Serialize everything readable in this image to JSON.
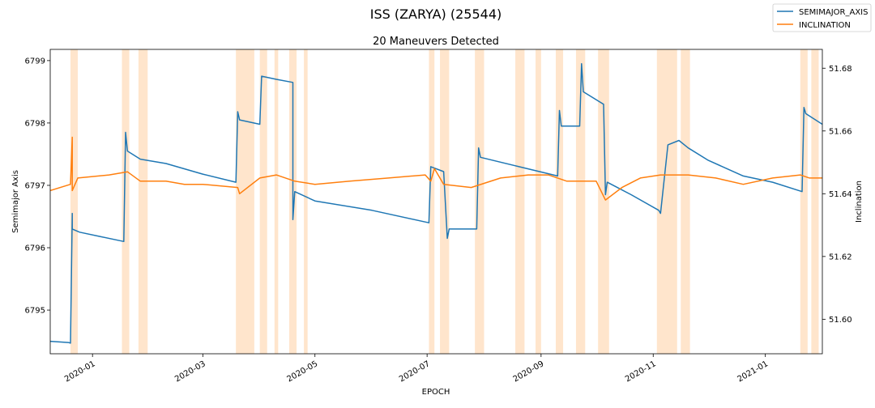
{
  "chart_data": {
    "type": "line",
    "suptitle": "ISS (ZARYA) (25544)",
    "title": "20 Maneuvers Detected",
    "xlabel": "EPOCH",
    "ylabel_left": "Semimajor Axis",
    "ylabel_right": "Inclination",
    "x_range": [
      "2019-12-09",
      "2021-02-01"
    ],
    "ylim_left": [
      6794.3,
      6799.18
    ],
    "ylim_right": [
      51.589,
      51.686
    ],
    "x_ticks": [
      {
        "date": "2020-01-01",
        "label": "2020-01"
      },
      {
        "date": "2020-03-01",
        "label": "2020-03"
      },
      {
        "date": "2020-05-01",
        "label": "2020-05"
      },
      {
        "date": "2020-07-01",
        "label": "2020-07"
      },
      {
        "date": "2020-09-01",
        "label": "2020-09"
      },
      {
        "date": "2020-11-01",
        "label": "2020-11"
      },
      {
        "date": "2021-01-01",
        "label": "2021-01"
      }
    ],
    "y_ticks_left": [
      6795,
      6796,
      6797,
      6798,
      6799
    ],
    "y_ticks_right": [
      "51.60",
      "51.62",
      "51.64",
      "51.66",
      "51.68"
    ],
    "legend_position": "top-right",
    "colors": {
      "semimajor": "#1f77b4",
      "inclination": "#ff7f0e",
      "maneuver": "#ffe5cc"
    },
    "maneuver_windows": [
      [
        "2019-12-20",
        "2019-12-24"
      ],
      [
        "2020-01-17",
        "2020-01-21"
      ],
      [
        "2020-01-26",
        "2020-01-31"
      ],
      [
        "2020-03-19",
        "2020-03-29"
      ],
      [
        "2020-04-01",
        "2020-04-05"
      ],
      [
        "2020-04-09",
        "2020-04-11"
      ],
      [
        "2020-04-17",
        "2020-04-21"
      ],
      [
        "2020-04-25",
        "2020-04-27"
      ],
      [
        "2020-07-02",
        "2020-07-05"
      ],
      [
        "2020-07-08",
        "2020-07-13"
      ],
      [
        "2020-07-27",
        "2020-08-01"
      ],
      [
        "2020-08-18",
        "2020-08-23"
      ],
      [
        "2020-08-29",
        "2020-09-01"
      ],
      [
        "2020-09-09",
        "2020-09-13"
      ],
      [
        "2020-09-20",
        "2020-09-25"
      ],
      [
        "2020-10-02",
        "2020-10-08"
      ],
      [
        "2020-11-03",
        "2020-11-14"
      ],
      [
        "2020-11-16",
        "2020-11-21"
      ],
      [
        "2021-01-20",
        "2021-01-24"
      ],
      [
        "2021-01-26",
        "2021-01-30"
      ]
    ],
    "series": [
      {
        "name": "SEMIMAJOR_AXIS",
        "axis": "left",
        "points": [
          [
            "2019-12-09",
            6794.5
          ],
          [
            "2019-12-19",
            6794.48
          ],
          [
            "2019-12-20",
            6794.47
          ],
          [
            "2019-12-21",
            6796.55
          ],
          [
            "2019-12-21",
            6796.3
          ],
          [
            "2019-12-25",
            6796.25
          ],
          [
            "2020-01-05",
            6796.18
          ],
          [
            "2020-01-18",
            6796.1
          ],
          [
            "2020-01-19",
            6797.85
          ],
          [
            "2020-01-20",
            6797.55
          ],
          [
            "2020-01-27",
            6797.42
          ],
          [
            "2020-02-10",
            6797.35
          ],
          [
            "2020-03-01",
            6797.18
          ],
          [
            "2020-03-19",
            6797.05
          ],
          [
            "2020-03-20",
            6798.18
          ],
          [
            "2020-03-21",
            6798.05
          ],
          [
            "2020-04-01",
            6797.98
          ],
          [
            "2020-04-02",
            6798.75
          ],
          [
            "2020-04-10",
            6798.7
          ],
          [
            "2020-04-19",
            6798.65
          ],
          [
            "2020-04-19",
            6796.45
          ],
          [
            "2020-04-20",
            6796.9
          ],
          [
            "2020-05-01",
            6796.75
          ],
          [
            "2020-06-01",
            6796.6
          ],
          [
            "2020-07-02",
            6796.4
          ],
          [
            "2020-07-03",
            6797.3
          ],
          [
            "2020-07-10",
            6797.22
          ],
          [
            "2020-07-12",
            6796.15
          ],
          [
            "2020-07-13",
            6796.3
          ],
          [
            "2020-07-28",
            6796.3
          ],
          [
            "2020-07-29",
            6797.6
          ],
          [
            "2020-07-30",
            6797.45
          ],
          [
            "2020-08-20",
            6797.3
          ],
          [
            "2020-09-10",
            6797.15
          ],
          [
            "2020-09-11",
            6798.2
          ],
          [
            "2020-09-12",
            6797.95
          ],
          [
            "2020-09-22",
            6797.95
          ],
          [
            "2020-09-23",
            6798.95
          ],
          [
            "2020-09-24",
            6798.5
          ],
          [
            "2020-10-05",
            6798.3
          ],
          [
            "2020-10-06",
            6796.85
          ],
          [
            "2020-10-07",
            6797.05
          ],
          [
            "2020-10-20",
            6796.85
          ],
          [
            "2020-11-04",
            6796.6
          ],
          [
            "2020-11-05",
            6796.55
          ],
          [
            "2020-11-09",
            6797.65
          ],
          [
            "2020-11-15",
            6797.72
          ],
          [
            "2020-11-20",
            6797.6
          ],
          [
            "2020-12-01",
            6797.4
          ],
          [
            "2020-12-20",
            6797.15
          ],
          [
            "2021-01-05",
            6797.05
          ],
          [
            "2021-01-21",
            6796.9
          ],
          [
            "2021-01-22",
            6798.25
          ],
          [
            "2021-01-23",
            6798.15
          ],
          [
            "2021-02-01",
            6797.98
          ]
        ]
      },
      {
        "name": "INCLINATION",
        "axis": "right",
        "points": [
          [
            "2019-12-09",
            51.641
          ],
          [
            "2019-12-20",
            51.643
          ],
          [
            "2019-12-21",
            51.658
          ],
          [
            "2019-12-21",
            51.641
          ],
          [
            "2019-12-24",
            51.645
          ],
          [
            "2020-01-10",
            51.646
          ],
          [
            "2020-01-20",
            51.647
          ],
          [
            "2020-01-27",
            51.644
          ],
          [
            "2020-02-10",
            51.644
          ],
          [
            "2020-02-20",
            51.643
          ],
          [
            "2020-03-01",
            51.643
          ],
          [
            "2020-03-20",
            51.642
          ],
          [
            "2020-03-21",
            51.64
          ],
          [
            "2020-04-01",
            51.645
          ],
          [
            "2020-04-10",
            51.646
          ],
          [
            "2020-04-20",
            51.644
          ],
          [
            "2020-05-01",
            51.643
          ],
          [
            "2020-05-20",
            51.644
          ],
          [
            "2020-06-10",
            51.645
          ],
          [
            "2020-06-30",
            51.646
          ],
          [
            "2020-07-03",
            51.644
          ],
          [
            "2020-07-05",
            51.648
          ],
          [
            "2020-07-10",
            51.643
          ],
          [
            "2020-07-25",
            51.642
          ],
          [
            "2020-08-10",
            51.645
          ],
          [
            "2020-08-25",
            51.646
          ],
          [
            "2020-09-05",
            51.646
          ],
          [
            "2020-09-15",
            51.644
          ],
          [
            "2020-10-01",
            51.644
          ],
          [
            "2020-10-06",
            51.638
          ],
          [
            "2020-10-15",
            51.642
          ],
          [
            "2020-10-25",
            51.645
          ],
          [
            "2020-11-05",
            51.646
          ],
          [
            "2020-11-20",
            51.646
          ],
          [
            "2020-12-05",
            51.645
          ],
          [
            "2020-12-20",
            51.643
          ],
          [
            "2021-01-05",
            51.645
          ],
          [
            "2021-01-20",
            51.646
          ],
          [
            "2021-01-25",
            51.645
          ],
          [
            "2021-02-01",
            51.645
          ]
        ]
      }
    ]
  }
}
